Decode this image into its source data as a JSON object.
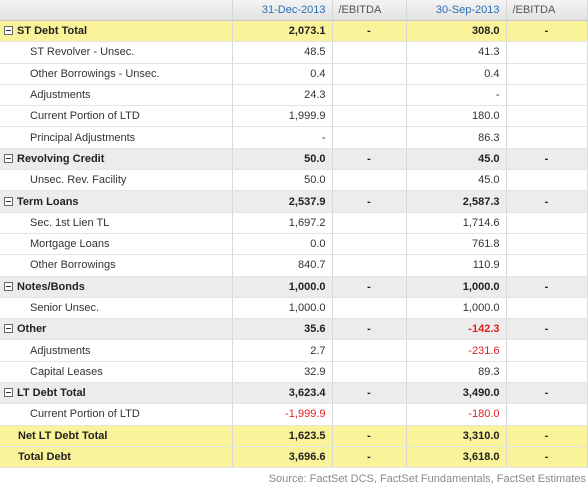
{
  "header": [
    "31-Dec-2013",
    "/EBITDA",
    "30-Sep-2013",
    "/EBITDA"
  ],
  "sections": [
    {
      "row": [
        "ST Debt Total",
        "2,073.1",
        "-",
        "308.0",
        "-"
      ],
      "items": [
        [
          "ST Revolver - Unsec.",
          "48.5",
          "41.3"
        ],
        [
          "Other Borrowings - Unsec.",
          "0.4",
          "0.4"
        ],
        [
          "Adjustments",
          "24.3",
          "-"
        ],
        [
          "Current Portion of LTD",
          "1,999.9",
          "180.0"
        ],
        [
          "Principal Adjustments",
          "-",
          "86.3"
        ]
      ]
    },
    {
      "row": [
        "Revolving Credit",
        "50.0",
        "-",
        "45.0",
        "-"
      ],
      "items": [
        [
          "Unsec. Rev. Facility",
          "50.0",
          "45.0"
        ]
      ]
    },
    {
      "row": [
        "Term Loans",
        "2,537.9",
        "-",
        "2,587.3",
        "-"
      ],
      "items": [
        [
          "Sec. 1st Lien TL",
          "1,697.2",
          "1,714.6"
        ],
        [
          "Mortgage Loans",
          "0.0",
          "761.8"
        ],
        [
          "Other Borrowings",
          "840.7",
          "110.9"
        ]
      ]
    },
    {
      "row": [
        "Notes/Bonds",
        "1,000.0",
        "-",
        "1,000.0",
        "-"
      ],
      "items": [
        [
          "Senior Unsec.",
          "1,000.0",
          "1,000.0"
        ]
      ]
    },
    {
      "row": [
        "Other",
        "35.6",
        "-",
        "-142.3",
        "-"
      ],
      "items": [
        [
          "Adjustments",
          "2.7",
          "-231.6"
        ],
        [
          "Capital Leases",
          "32.9",
          "89.3"
        ]
      ]
    },
    {
      "row": [
        "LT Debt Total",
        "3,623.4",
        "-",
        "3,490.0",
        "-"
      ],
      "items": [
        [
          "Current Portion of LTD",
          "-1,999.9",
          "-180.0"
        ]
      ]
    }
  ],
  "totals": [
    [
      "Net LT Debt Total",
      "1,623.5",
      "-",
      "3,310.0",
      "-"
    ],
    [
      "Total Debt",
      "3,696.6",
      "-",
      "3,618.0",
      "-"
    ]
  ],
  "source": "Source: FactSet DCS, FactSet Fundamentals, FactSet Estimates"
}
